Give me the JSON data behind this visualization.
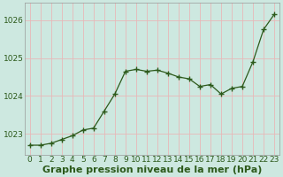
{
  "x": [
    0,
    1,
    2,
    3,
    4,
    5,
    6,
    7,
    8,
    9,
    10,
    11,
    12,
    13,
    14,
    15,
    16,
    17,
    18,
    19,
    20,
    21,
    22,
    23
  ],
  "y": [
    1022.7,
    1022.7,
    1022.75,
    1022.85,
    1022.95,
    1023.1,
    1023.15,
    1023.6,
    1024.05,
    1024.65,
    1024.7,
    1024.65,
    1024.68,
    1024.6,
    1024.5,
    1024.45,
    1024.25,
    1024.3,
    1024.05,
    1024.2,
    1024.25,
    1024.9,
    1025.75,
    1026.15
  ],
  "line_color": "#2d5a1b",
  "marker": "P",
  "marker_color": "#2d5a1b",
  "bg_color": "#cde8e0",
  "grid_color": "#e8b8b8",
  "ylabel_ticks": [
    1023,
    1024,
    1025,
    1026
  ],
  "xlabel_ticks": [
    0,
    1,
    2,
    3,
    4,
    5,
    6,
    7,
    8,
    9,
    10,
    11,
    12,
    13,
    14,
    15,
    16,
    17,
    18,
    19,
    20,
    21,
    22,
    23
  ],
  "ylim": [
    1022.45,
    1026.45
  ],
  "xlim": [
    -0.5,
    23.5
  ],
  "xlabel": "Graphe pression niveau de la mer (hPa)",
  "xlabel_fontsize": 8,
  "tick_fontsize": 6.5,
  "text_color": "#2d5a1b"
}
